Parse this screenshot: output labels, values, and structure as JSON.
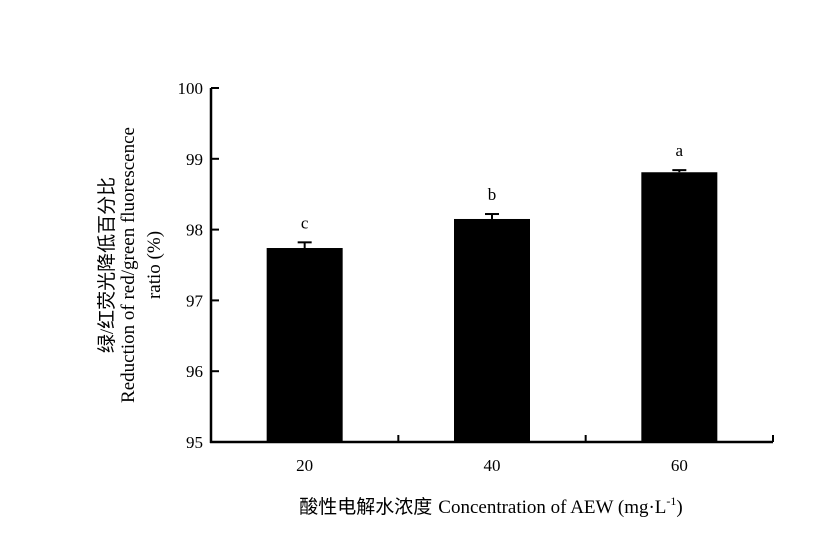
{
  "chart_data": {
    "type": "bar",
    "categories": [
      "20",
      "40",
      "60"
    ],
    "values": [
      97.74,
      98.15,
      98.81
    ],
    "error": [
      0.08,
      0.07,
      0.03
    ],
    "significance_letters": [
      "c",
      "b",
      "a"
    ],
    "ylim": [
      95,
      100
    ],
    "yticks": [
      "95",
      "96",
      "97",
      "98",
      "99",
      "100"
    ],
    "xlabel_cn": "酸性电解水浓度",
    "xlabel_en": "Concentration of AEW (mg·L",
    "xlabel_sup": "-1",
    "xlabel_close": ")",
    "ylabel_cn": "绿/红荧光降低百分比",
    "ylabel_line2": "Reduction of red/green fluorescence",
    "ylabel_line3": "ratio (%)",
    "grid": false,
    "bar_color": "#000000"
  }
}
